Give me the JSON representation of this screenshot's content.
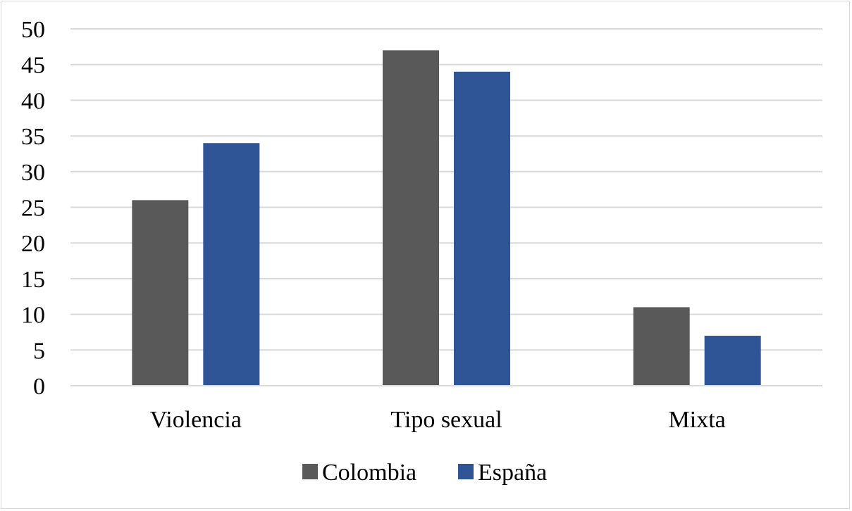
{
  "chart_data": {
    "type": "bar",
    "categories": [
      "Violencia",
      "Tipo sexual",
      "Mixta"
    ],
    "series": [
      {
        "name": "Colombia",
        "values": [
          26,
          47,
          11
        ],
        "color": "#595959"
      },
      {
        "name": "España",
        "values": [
          34,
          44,
          7
        ],
        "color": "#2f5597"
      }
    ],
    "ylim": [
      0,
      50
    ],
    "yticks": [
      0,
      5,
      10,
      15,
      20,
      25,
      30,
      35,
      40,
      45,
      50
    ],
    "grid": true,
    "legend_position": "bottom",
    "title": "",
    "xlabel": "",
    "ylabel": ""
  }
}
